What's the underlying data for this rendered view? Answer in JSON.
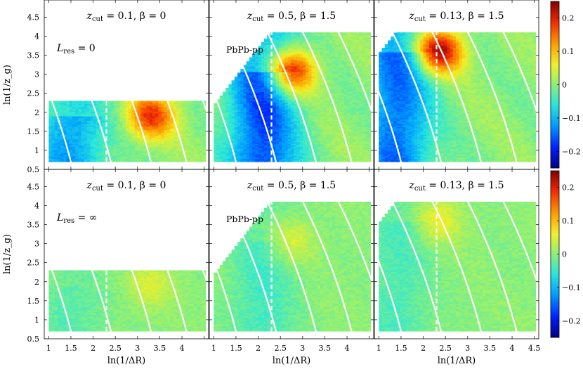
{
  "chart_data": {
    "type": "heatmap",
    "xlabel": "ln(1/ΔR)",
    "ylabel": "ln(1/z_g)",
    "xlim": [
      0.9,
      4.6
    ],
    "ylim": [
      0.5,
      4.95
    ],
    "x_ticks": [
      "1",
      "1.5",
      "2",
      "2.5",
      "3",
      "3.5",
      "4",
      "4.5"
    ],
    "y_ticks": [
      "0.5",
      "1",
      "1.5",
      "2",
      "2.5",
      "3",
      "3.5",
      "4",
      "4.5"
    ],
    "colorbar": {
      "ticks": [
        "0.2",
        "0.1",
        "0",
        "−0.1",
        "−0.2"
      ],
      "range": [
        -0.25,
        0.25
      ]
    },
    "grid": false,
    "panels": [
      {
        "id": "top-left",
        "title_main": "z",
        "title_sub": "cut",
        "title_rest": " = 0.1, β = 0",
        "note_main": "L",
        "note_sub": "res",
        "note_rest": " = 0",
        "zcut": 0.1,
        "beta": 0,
        "row": 0,
        "col": 0,
        "intensity": 1,
        "hotspot": [
          3.3,
          1.9
        ],
        "cold_center": 1.5,
        "hot_amp": 0.18,
        "cold_amp": -0.12
      },
      {
        "id": "top-middle",
        "title_main": "z",
        "title_sub": "cut",
        "title_rest": " = 0.5, β = 1.5",
        "note_main": "PbPb-pp",
        "zcut": 0.5,
        "beta": 1.5,
        "row": 0,
        "col": 1,
        "intensity": 1,
        "hotspot": [
          2.75,
          3.05
        ],
        "cold_center": 2.1,
        "hot_amp": 0.22,
        "cold_amp": -0.17
      },
      {
        "id": "top-right",
        "title_main": "z",
        "title_sub": "cut",
        "title_rest": " = 0.13, β = 1.5",
        "zcut": 0.13,
        "beta": 1.5,
        "row": 0,
        "col": 2,
        "intensity": 1,
        "hotspot": [
          2.35,
          3.6
        ],
        "cold_center": 1.4,
        "hot_amp": 0.24,
        "cold_amp": -0.15
      },
      {
        "id": "bottom-left",
        "title_main": "z",
        "title_sub": "cut",
        "title_rest": " = 0.1, β = 0",
        "note_main": "L",
        "note_sub": "res",
        "note_rest": " = ∞",
        "zcut": 0.1,
        "beta": 0,
        "row": 1,
        "col": 0,
        "intensity": 0.25,
        "hotspot": [
          3.3,
          1.9
        ],
        "cold_center": 1.5,
        "hot_amp": 0.18,
        "cold_amp": -0.12
      },
      {
        "id": "bottom-middle",
        "title_main": "z",
        "title_sub": "cut",
        "title_rest": " = 0.5, β = 1.5",
        "note_main": "PbPb-pp",
        "zcut": 0.5,
        "beta": 1.5,
        "row": 1,
        "col": 1,
        "intensity": 0.25,
        "hotspot": [
          2.75,
          3.05
        ],
        "cold_center": 2.1,
        "hot_amp": 0.22,
        "cold_amp": -0.17
      },
      {
        "id": "bottom-right",
        "title_main": "z",
        "title_sub": "cut",
        "title_rest": " = 0.13, β = 1.5",
        "zcut": 0.13,
        "beta": 1.5,
        "row": 1,
        "col": 2,
        "intensity": 0.25,
        "hotspot": [
          2.35,
          3.6
        ],
        "cold_center": 1.4,
        "hot_amp": 0.24,
        "cold_amp": -0.15
      }
    ],
    "white_lines": {
      "solid_curves": "constant-time contours (white)",
      "dashed_x": 2.3
    }
  }
}
